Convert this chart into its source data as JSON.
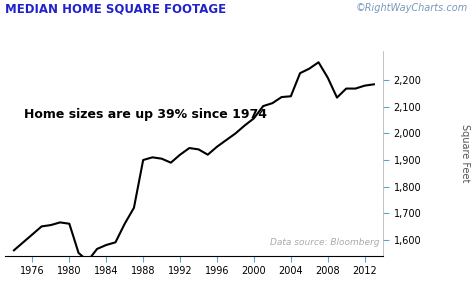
{
  "title": "MEDIAN HOME SQUARE FOOTAGE",
  "watermark": "©RightWayCharts.com",
  "annotation": "Home sizes are up 39% since 1974",
  "datasource": "Data source: Bloomberg",
  "ylabel": "Square Feet",
  "line_color": "#000000",
  "line_width": 1.5,
  "background_color": "#ffffff",
  "title_color": "#2222cc",
  "watermark_color": "#7799bb",
  "annotation_color": "#000000",
  "datasource_color": "#aaaaaa",
  "tick_color": "#55aacc",
  "years": [
    1974,
    1975,
    1976,
    1977,
    1978,
    1979,
    1980,
    1981,
    1982,
    1983,
    1984,
    1985,
    1986,
    1987,
    1988,
    1989,
    1990,
    1991,
    1992,
    1993,
    1994,
    1995,
    1996,
    1997,
    1998,
    1999,
    2000,
    2001,
    2002,
    2003,
    2004,
    2005,
    2006,
    2007,
    2008,
    2009,
    2010,
    2011,
    2012,
    2013
  ],
  "values": [
    1560,
    1590,
    1620,
    1650,
    1655,
    1665,
    1660,
    1550,
    1520,
    1565,
    1580,
    1590,
    1660,
    1720,
    1900,
    1910,
    1905,
    1890,
    1920,
    1945,
    1940,
    1920,
    1950,
    1975,
    2000,
    2030,
    2057,
    2103,
    2114,
    2137,
    2140,
    2227,
    2244,
    2268,
    2210,
    2135,
    2169,
    2169,
    2180,
    2185
  ],
  "xlim": [
    1973,
    2014
  ],
  "ylim": [
    1540,
    2310
  ],
  "xticks": [
    1976,
    1980,
    1984,
    1988,
    1992,
    1996,
    2000,
    2004,
    2008,
    2012
  ],
  "yticks": [
    1600,
    1700,
    1800,
    1900,
    2000,
    2100,
    2200
  ],
  "title_fontsize": 8.5,
  "watermark_fontsize": 7,
  "annotation_fontsize": 9,
  "datasource_fontsize": 6.5,
  "tick_fontsize": 7,
  "border_color": "#aaaaaa"
}
